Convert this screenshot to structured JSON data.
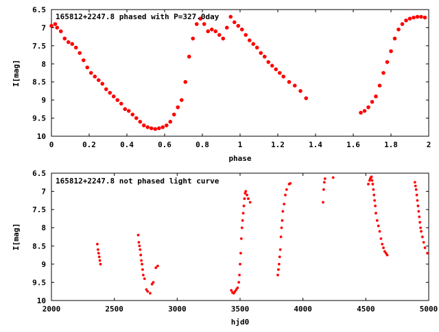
{
  "chart_data": [
    {
      "type": "scatter",
      "title": "165812+2247.8 phased with P=327.0day",
      "xlabel": "phase",
      "ylabel": "I[mag]",
      "xlim": [
        0,
        2
      ],
      "ylim": [
        6.5,
        10
      ],
      "y_inverted": true,
      "grid": false,
      "legend": "none",
      "xticks": [
        "0",
        "0.2",
        "0.4",
        "0.6",
        "0.8",
        "1",
        "1.2",
        "1.4",
        "1.6",
        "1.8",
        "2"
      ],
      "yticks": [
        "6.5",
        "7",
        "7.5",
        "8",
        "8.5",
        "9",
        "9.5",
        "10"
      ],
      "marker_color": "#ff0000",
      "marker": "filled-circle",
      "series": [
        {
          "x": [
            0.0,
            0.02,
            0.03,
            0.05,
            0.07,
            0.09,
            0.11,
            0.13,
            0.15,
            0.17,
            0.19,
            0.21,
            0.23,
            0.25,
            0.27,
            0.29,
            0.31,
            0.33,
            0.35,
            0.37,
            0.39,
            0.41,
            0.43,
            0.45,
            0.47,
            0.49,
            0.51,
            0.53,
            0.55,
            0.57,
            0.59,
            0.61,
            0.63,
            0.65,
            0.67,
            0.69,
            0.71,
            0.73,
            0.75,
            0.77,
            0.79,
            0.81,
            0.83,
            0.85,
            0.87,
            0.89,
            0.91,
            0.93,
            0.95,
            0.97,
            0.99,
            1.01,
            1.03,
            1.05,
            1.07,
            1.09,
            1.11,
            1.13,
            1.15,
            1.17,
            1.19,
            1.21,
            1.23,
            1.26,
            1.29,
            1.32,
            1.35,
            1.64,
            1.66,
            1.68,
            1.7,
            1.72,
            1.74,
            1.76,
            1.78,
            1.8,
            1.82,
            1.84,
            1.86,
            1.88,
            1.9,
            1.92,
            1.94,
            1.96,
            1.98
          ],
          "y": [
            6.95,
            6.9,
            7.0,
            7.1,
            7.3,
            7.4,
            7.45,
            7.55,
            7.7,
            7.9,
            8.1,
            8.25,
            8.35,
            8.45,
            8.55,
            8.7,
            8.8,
            8.9,
            9.0,
            9.1,
            9.25,
            9.3,
            9.4,
            9.5,
            9.6,
            9.7,
            9.75,
            9.78,
            9.8,
            9.78,
            9.75,
            9.7,
            9.6,
            9.4,
            9.2,
            9.0,
            8.5,
            7.8,
            7.3,
            6.9,
            6.75,
            6.9,
            7.1,
            7.05,
            7.1,
            7.2,
            7.3,
            7.0,
            6.7,
            6.85,
            6.95,
            7.05,
            7.2,
            7.35,
            7.45,
            7.55,
            7.7,
            7.8,
            7.95,
            8.05,
            8.15,
            8.25,
            8.35,
            8.5,
            8.6,
            8.75,
            8.95,
            9.35,
            9.3,
            9.2,
            9.05,
            8.9,
            8.6,
            8.25,
            7.95,
            7.65,
            7.3,
            7.05,
            6.9,
            6.8,
            6.75,
            6.72,
            6.7,
            6.7,
            6.72
          ]
        }
      ]
    },
    {
      "type": "scatter",
      "title": "165812+2247.8 not phased light curve",
      "xlabel": "hjd0",
      "ylabel": "I[mag]",
      "xlim": [
        2000,
        5000
      ],
      "ylim": [
        6.5,
        10
      ],
      "y_inverted": true,
      "grid": false,
      "legend": "none",
      "xticks": [
        "2000",
        "2500",
        "3000",
        "3500",
        "4000",
        "4500",
        "5000"
      ],
      "yticks": [
        "6.5",
        "7",
        "7.5",
        "8",
        "8.5",
        "9",
        "9.5",
        "10"
      ],
      "marker_color": "#ff0000",
      "marker": "filled-circle",
      "series": [
        {
          "x": [
            2365,
            2370,
            2375,
            2380,
            2385,
            2390,
            2690,
            2695,
            2700,
            2705,
            2710,
            2715,
            2720,
            2725,
            2730,
            2740,
            2755,
            2765,
            2785,
            2800,
            2810,
            2830,
            2845,
            3430,
            3440,
            3450,
            3460,
            3470,
            3480,
            3490,
            3495,
            3500,
            3505,
            3510,
            3515,
            3520,
            3525,
            3530,
            3535,
            3540,
            3545,
            3555,
            3565,
            3580,
            3800,
            3805,
            3810,
            3815,
            3820,
            3825,
            3830,
            3835,
            3840,
            3850,
            3860,
            3870,
            3890,
            3900,
            4160,
            4165,
            4170,
            4175,
            4240,
            4520,
            4530,
            4535,
            4540,
            4545,
            4550,
            4555,
            4560,
            4565,
            4570,
            4575,
            4580,
            4590,
            4600,
            4610,
            4620,
            4630,
            4640,
            4650,
            4660,
            4670,
            4890,
            4895,
            4900,
            4905,
            4910,
            4915,
            4920,
            4925,
            4930,
            4935,
            4940,
            4950,
            4960,
            4970,
            4990
          ],
          "y": [
            8.45,
            8.6,
            8.7,
            8.8,
            8.9,
            9.0,
            8.2,
            8.4,
            8.5,
            8.6,
            8.75,
            8.9,
            9.0,
            9.15,
            9.3,
            9.4,
            9.7,
            9.75,
            9.8,
            9.55,
            9.5,
            9.1,
            9.05,
            9.72,
            9.78,
            9.8,
            9.75,
            9.7,
            9.65,
            9.5,
            9.3,
            9.0,
            8.7,
            8.3,
            8.0,
            7.8,
            7.6,
            7.4,
            7.2,
            7.05,
            7.0,
            7.1,
            7.2,
            7.3,
            9.3,
            9.15,
            9.0,
            8.8,
            8.6,
            8.25,
            8.0,
            7.8,
            7.55,
            7.35,
            7.1,
            6.95,
            6.8,
            6.78,
            7.3,
            6.95,
            6.75,
            6.65,
            6.62,
            6.8,
            6.7,
            6.65,
            6.62,
            6.6,
            6.7,
            6.8,
            6.95,
            7.1,
            7.25,
            7.4,
            7.6,
            7.8,
            7.95,
            8.1,
            8.3,
            8.45,
            8.55,
            8.65,
            8.7,
            8.75,
            6.75,
            6.85,
            6.95,
            7.1,
            7.25,
            7.4,
            7.55,
            7.7,
            7.85,
            8.0,
            8.1,
            8.25,
            8.4,
            8.55,
            8.7
          ]
        }
      ]
    }
  ]
}
